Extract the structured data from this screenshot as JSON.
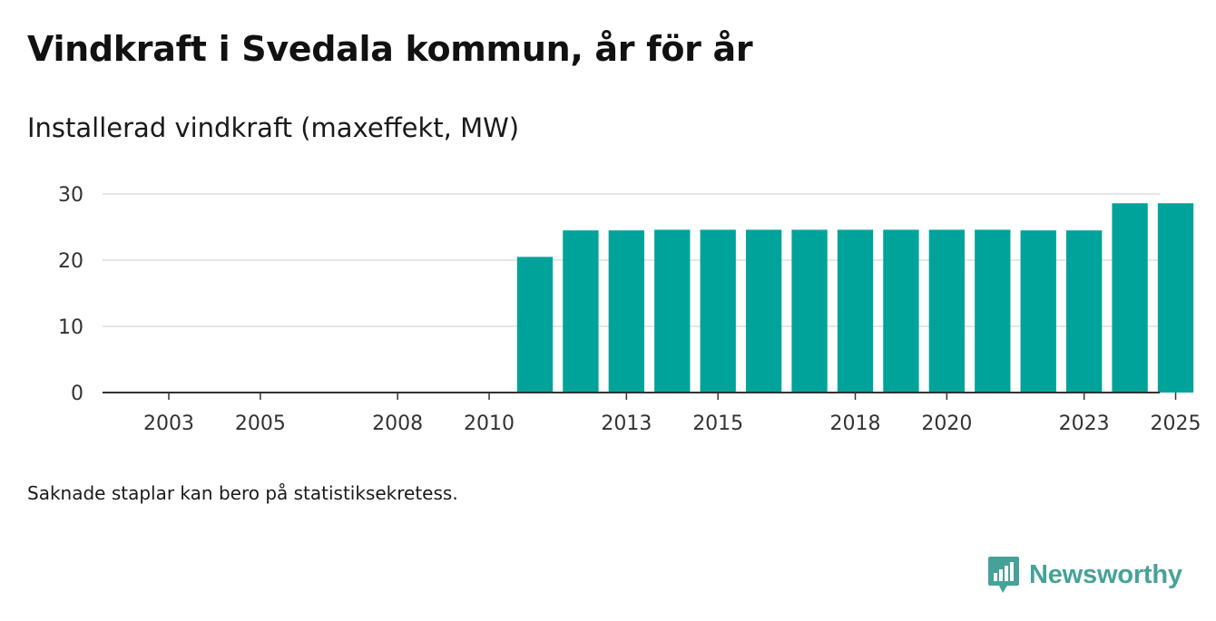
{
  "title": "Vindkraft i Svedala kommun, år för år",
  "subtitle": "Installerad vindkraft (maxeffekt, MW)",
  "footnote": "Saknade staplar kan bero på statistiksekretess.",
  "brand": {
    "name": "Newsworthy",
    "color": "#46a298"
  },
  "colors": {
    "bar": "#00a39a",
    "grid": "#dddddd",
    "axis": "#333333"
  },
  "chart_data": {
    "type": "bar",
    "title": "Vindkraft i Svedala kommun, år för år",
    "ylabel": "Installerad vindkraft (maxeffekt, MW)",
    "xlabel": "",
    "ylim": [
      0,
      30
    ],
    "yticks": [
      0,
      10,
      20,
      30
    ],
    "categories": [
      2003,
      2004,
      2005,
      2006,
      2007,
      2008,
      2009,
      2010,
      2011,
      2012,
      2013,
      2014,
      2015,
      2016,
      2017,
      2018,
      2019,
      2020,
      2021,
      2022,
      2023,
      2024,
      2025
    ],
    "values": [
      null,
      null,
      null,
      null,
      null,
      null,
      null,
      null,
      20.5,
      24.5,
      24.5,
      24.6,
      24.6,
      24.6,
      24.6,
      24.6,
      24.6,
      24.6,
      24.6,
      24.5,
      24.5,
      28.6,
      28.6
    ],
    "xticks": [
      2003,
      2005,
      2008,
      2010,
      2013,
      2015,
      2018,
      2020,
      2023,
      2025
    ],
    "grid": true
  }
}
